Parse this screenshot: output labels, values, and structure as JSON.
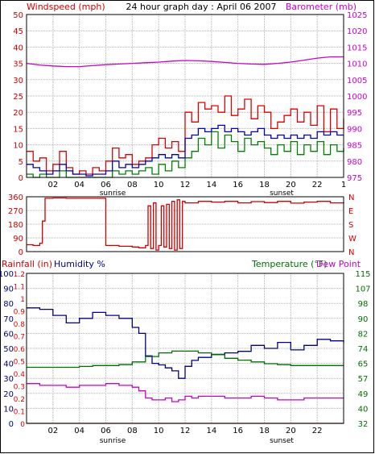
{
  "header": {
    "windspeed_label": "Windspeed (mph)",
    "title": "24 hour graph day : April 06 2007",
    "barometer_label": "Barometer (mb)"
  },
  "lower_header": {
    "rainfall_label": "Rainfall (in)",
    "humidity_label": "Humidity %",
    "temperature_label": "Temperature (°F)",
    "dewpoint_label": "Dew Point"
  },
  "markers": {
    "sunrise": "sunrise",
    "sunset": "sunset"
  },
  "colors": {
    "wind_axis": "#d00000",
    "barometer": "#cc00cc",
    "gust": "#e00000",
    "avg_wind": "#0000c0",
    "min_wind": "#008000",
    "direction": "#d00000",
    "humidity": "#00008b",
    "temperature": "#007000",
    "dewpoint": "#cc00cc",
    "rain": "#e00000",
    "grid": "#b0b0b0"
  },
  "chart_data": [
    {
      "type": "line",
      "name": "wind-barometer",
      "x_ticks": [
        "02",
        "04",
        "06",
        "08",
        "10",
        "12",
        "14",
        "16",
        "18",
        "20",
        "22"
      ],
      "x_end_tick": "1",
      "xlim": [
        0,
        24
      ],
      "left_axis": {
        "label": "Windspeed (mph)",
        "ticks": [
          "0",
          "5",
          "10",
          "15",
          "20",
          "25",
          "30",
          "35",
          "40",
          "45",
          "50"
        ],
        "ylim": [
          0,
          50
        ]
      },
      "right_axis": {
        "label": "Barometer (mb)",
        "ticks": [
          "975",
          "980",
          "985",
          "990",
          "995",
          "1000",
          "1005",
          "1010",
          "1015",
          "1020",
          "1025"
        ],
        "ylim": [
          975,
          1025
        ]
      },
      "series": [
        {
          "key": "barometer",
          "axis": "right",
          "x": [
            0,
            1,
            2,
            3,
            4,
            5,
            6,
            7,
            8,
            9,
            10,
            11,
            12,
            13,
            14,
            15,
            16,
            17,
            18,
            19,
            20,
            21,
            22,
            23,
            24
          ],
          "values": [
            1010,
            1009.5,
            1009.2,
            1009,
            1009,
            1009.3,
            1009.6,
            1009.8,
            1010,
            1010.2,
            1010.4,
            1010.7,
            1010.9,
            1010.8,
            1010.6,
            1010.3,
            1010,
            1009.8,
            1009.7,
            1010,
            1010.4,
            1011,
            1011.6,
            1012,
            1012
          ]
        },
        {
          "key": "gust",
          "axis": "left",
          "x": [
            0,
            0.5,
            1,
            1.5,
            2,
            2.5,
            3,
            3.5,
            4,
            4.5,
            5,
            5.5,
            6,
            6.5,
            7,
            7.5,
            8,
            8.5,
            9,
            9.5,
            10,
            10.5,
            11,
            11.5,
            12,
            12.5,
            13,
            13.5,
            14,
            14.5,
            15,
            15.5,
            16,
            16.5,
            17,
            17.5,
            18,
            18.5,
            19,
            19.5,
            20,
            20.5,
            21,
            21.5,
            22,
            22.5,
            23,
            23.5,
            24
          ],
          "values": [
            8,
            5,
            6,
            2,
            4,
            8,
            3,
            1,
            2,
            1,
            3,
            2,
            5,
            9,
            6,
            7,
            4,
            5,
            6,
            10,
            12,
            9,
            11,
            8,
            20,
            17,
            23,
            21,
            22,
            20,
            25,
            19,
            21,
            24,
            18,
            22,
            20,
            15,
            17,
            19,
            21,
            17,
            20,
            16,
            22,
            14,
            21,
            15,
            18
          ]
        },
        {
          "key": "avg_wind",
          "axis": "left",
          "x": [
            0,
            0.5,
            1,
            1.5,
            2,
            2.5,
            3,
            3.5,
            4,
            4.5,
            5,
            5.5,
            6,
            6.5,
            7,
            7.5,
            8,
            8.5,
            9,
            9.5,
            10,
            10.5,
            11,
            11.5,
            12,
            12.5,
            13,
            13.5,
            14,
            14.5,
            15,
            15.5,
            16,
            16.5,
            17,
            17.5,
            18,
            18.5,
            19,
            19.5,
            20,
            20.5,
            21,
            21.5,
            22,
            22.5,
            23,
            23.5,
            24
          ],
          "values": [
            4,
            3,
            2,
            1,
            2,
            4,
            2,
            1,
            1,
            0.5,
            1,
            1,
            2,
            5,
            3,
            4,
            3,
            4,
            5,
            6,
            7,
            6,
            7,
            6,
            12,
            13,
            15,
            14,
            15,
            16,
            14,
            15,
            14,
            13,
            14,
            15,
            13,
            12,
            13,
            12,
            13,
            12,
            13,
            12,
            14,
            13,
            14,
            13,
            13
          ]
        },
        {
          "key": "min_wind",
          "axis": "left",
          "x": [
            0,
            0.5,
            1,
            1.5,
            2,
            2.5,
            3,
            3.5,
            4,
            4.5,
            5,
            5.5,
            6,
            6.5,
            7,
            7.5,
            8,
            8.5,
            9,
            9.5,
            10,
            10.5,
            11,
            11.5,
            12,
            12.5,
            13,
            13.5,
            14,
            14.5,
            15,
            15.5,
            16,
            16.5,
            17,
            17.5,
            18,
            18.5,
            19,
            19.5,
            20,
            20.5,
            21,
            21.5,
            22,
            22.5,
            23,
            23.5,
            24
          ],
          "values": [
            1,
            0,
            1,
            0,
            0,
            2,
            0,
            0,
            0,
            0,
            0,
            0,
            0,
            2,
            1,
            2,
            1,
            2,
            3,
            1,
            4,
            2,
            5,
            3,
            6,
            8,
            12,
            10,
            14,
            9,
            13,
            11,
            8,
            12,
            10,
            11,
            9,
            7,
            10,
            8,
            11,
            7,
            10,
            8,
            11,
            7,
            10,
            8,
            9
          ]
        }
      ]
    },
    {
      "type": "line",
      "name": "wind-direction",
      "x_ticks": [],
      "xlim": [
        0,
        24
      ],
      "left_axis": {
        "ticks": [
          "0",
          "90",
          "180",
          "270",
          "360"
        ],
        "ylim": [
          0,
          360
        ]
      },
      "right_axis": {
        "ticks": [
          "N",
          "W",
          "S",
          "E",
          "N"
        ]
      },
      "series": [
        {
          "key": "direction",
          "x": [
            0,
            0.5,
            1,
            1.2,
            1.4,
            2,
            3,
            4,
            5,
            5.9,
            6,
            7,
            8,
            8.5,
            9,
            9.2,
            9.4,
            9.6,
            9.8,
            10,
            10.2,
            10.4,
            10.6,
            10.8,
            11,
            11.2,
            11.4,
            11.6,
            11.8,
            12,
            13,
            14,
            15,
            16,
            17,
            18,
            19,
            20,
            21,
            22,
            23,
            24
          ],
          "values": [
            45,
            40,
            55,
            200,
            350,
            352,
            350,
            350,
            350,
            350,
            40,
            35,
            30,
            25,
            40,
            300,
            20,
            320,
            10,
            40,
            300,
            30,
            310,
            20,
            330,
            10,
            340,
            20,
            330,
            320,
            330,
            325,
            330,
            320,
            328,
            322,
            330,
            318,
            325,
            330,
            320,
            325
          ]
        }
      ]
    },
    {
      "type": "line",
      "name": "rain-humidity-temperature",
      "x_ticks": [
        "02",
        "04",
        "06",
        "08",
        "10",
        "12",
        "14",
        "16",
        "18",
        "20",
        "22"
      ],
      "xlim": [
        0,
        24
      ],
      "left_axis_humidity": {
        "label": "Humidity %",
        "ticks": [
          "0",
          "10",
          "20",
          "30",
          "40",
          "50",
          "60",
          "70",
          "80",
          "90",
          "100"
        ],
        "ylim": [
          0,
          100
        ]
      },
      "left_axis_rain": {
        "label": "Rainfall (in)",
        "ticks": [
          "0",
          "0.1",
          "0.2",
          "0.3",
          "0.4",
          "0.5",
          "0.6",
          "0.7",
          "0.8",
          "0.9",
          "1",
          "1.1",
          "1.2"
        ],
        "ylim": [
          0,
          1.2
        ]
      },
      "right_axis": {
        "label": "Temperature (°F)",
        "ticks": [
          "32",
          "40",
          "49",
          "57",
          "65",
          "74",
          "82",
          "90",
          "98",
          "107",
          "115"
        ],
        "ylim": [
          32,
          115
        ]
      },
      "series": [
        {
          "key": "humidity",
          "axis": "humidity",
          "x": [
            0,
            1,
            2,
            3,
            4,
            5,
            6,
            7,
            8,
            8.5,
            9,
            9.5,
            10,
            10.5,
            11,
            11.5,
            12,
            12.5,
            13,
            14,
            15,
            16,
            17,
            18,
            19,
            20,
            21,
            22,
            23,
            24
          ],
          "values": [
            77,
            76,
            72,
            67,
            70,
            74,
            72,
            70,
            64,
            60,
            45,
            40,
            39,
            37,
            35,
            30,
            38,
            42,
            44,
            46,
            47,
            48,
            52,
            50,
            54,
            49,
            52,
            56,
            55,
            54
          ]
        },
        {
          "key": "temperature",
          "axis": "temp",
          "x": [
            0,
            1,
            2,
            3,
            4,
            5,
            6,
            7,
            8,
            9,
            10,
            11,
            12,
            13,
            14,
            15,
            16,
            17,
            18,
            19,
            20,
            21,
            22,
            23,
            24
          ],
          "values": [
            63,
            63,
            63,
            63,
            63.5,
            64,
            64,
            64.5,
            66,
            69,
            71,
            72,
            72,
            71,
            70,
            68,
            67,
            66,
            65,
            64.5,
            64,
            64,
            64,
            64,
            64
          ]
        },
        {
          "key": "dewpoint",
          "axis": "temp",
          "x": [
            0,
            1,
            2,
            3,
            4,
            5,
            6,
            7,
            8,
            8.5,
            9,
            9.5,
            10,
            10.5,
            11,
            11.5,
            12,
            12.5,
            13,
            14,
            15,
            16,
            17,
            18,
            19,
            20,
            21,
            22,
            23,
            24
          ],
          "values": [
            54,
            53,
            53,
            52,
            53,
            53,
            54,
            53,
            52,
            50,
            46,
            45,
            45,
            46,
            44,
            45,
            47,
            46,
            47,
            47,
            46,
            46,
            47,
            46,
            45,
            45,
            46,
            46,
            46,
            46
          ]
        },
        {
          "key": "rain",
          "axis": "rain",
          "x": [
            0,
            24
          ],
          "values": [
            0,
            0
          ]
        }
      ]
    }
  ]
}
